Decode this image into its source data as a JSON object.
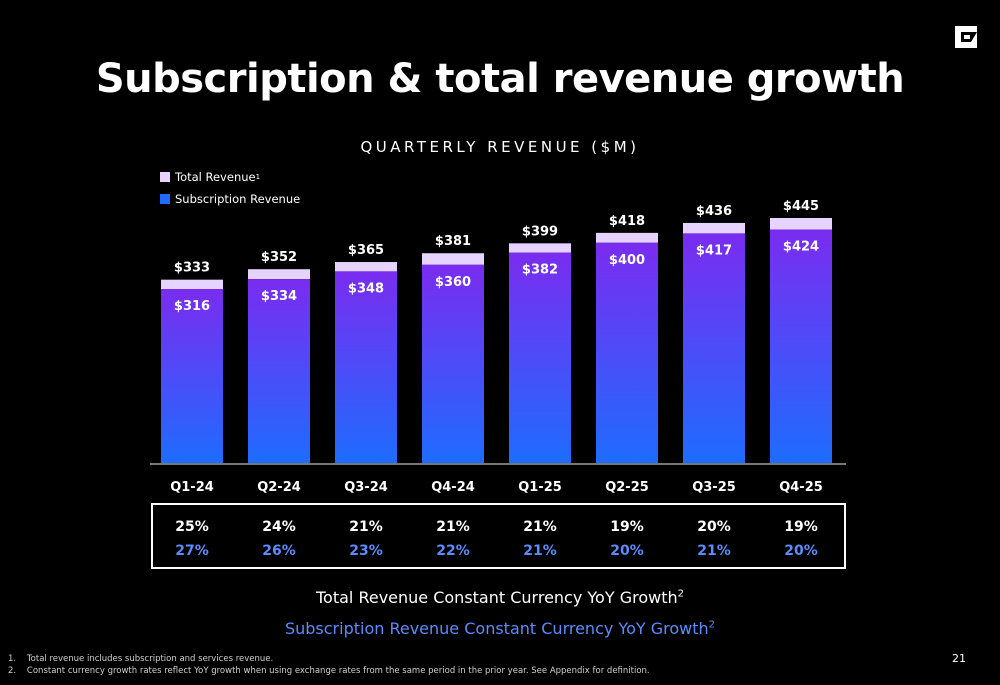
{
  "title": "Subscription & total revenue growth",
  "page_number": "21",
  "colors": {
    "total_revenue": "#e6d3ff",
    "subscription_top": "#7a2cf0",
    "subscription_bottom": "#1e6cff",
    "growth_subscription": "#5a8cff"
  },
  "legend": {
    "total_label": "Total Revenue",
    "total_sup": "1",
    "subscription_label": "Subscription Revenue"
  },
  "growth": {
    "total_label": "Total Revenue Constant Currency YoY Growth",
    "total_sup": "2",
    "subscription_label": "Subscription Revenue Constant Currency YoY Growth",
    "subscription_sup": "2",
    "total_values": [
      "25%",
      "24%",
      "21%",
      "21%",
      "21%",
      "19%",
      "20%",
      "19%"
    ],
    "subscription_values": [
      "27%",
      "26%",
      "23%",
      "22%",
      "21%",
      "20%",
      "21%",
      "20%"
    ]
  },
  "footnotes": [
    "1.    Total revenue includes subscription and services revenue.",
    "2.    Constant currency growth rates reflect YoY growth when using exchange rates from the same period in the prior year. See Appendix for definition."
  ],
  "chart_data": {
    "type": "bar",
    "title": "QUARTERLY REVENUE ($M)",
    "categories": [
      "Q1-24",
      "Q2-24",
      "Q3-24",
      "Q4-24",
      "Q1-25",
      "Q2-25",
      "Q3-25",
      "Q4-25"
    ],
    "series": [
      {
        "name": "Total Revenue",
        "values": [
          333,
          352,
          365,
          381,
          399,
          418,
          436,
          445
        ]
      },
      {
        "name": "Subscription Revenue",
        "values": [
          316,
          334,
          348,
          360,
          382,
          400,
          417,
          424
        ]
      }
    ],
    "ylim": [
      0,
      445
    ],
    "grid": false,
    "legend": "top-left"
  }
}
